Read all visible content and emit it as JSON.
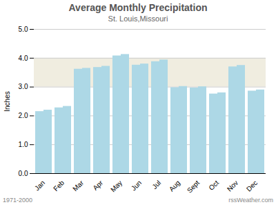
{
  "chart_data": {
    "type": "bar",
    "title": "Average Monthly Precipitation",
    "subtitle": "St. Louis,Missouri",
    "ylabel": "Inches",
    "categories": [
      "Jan",
      "Feb",
      "Mar",
      "Apr",
      "May",
      "Jun",
      "Jul",
      "Aug",
      "Sept",
      "Oct",
      "Nov",
      "Dec"
    ],
    "series": [
      {
        "color": "#ADD8E6",
        "values": [
          2.15,
          2.28,
          3.62,
          3.68,
          4.08,
          3.76,
          3.88,
          2.98,
          2.97,
          2.76,
          3.7,
          2.86
        ]
      },
      {
        "color": "#ADD8E6",
        "values": [
          2.2,
          2.33,
          3.65,
          3.72,
          4.13,
          3.8,
          3.94,
          3.02,
          3.01,
          2.8,
          3.75,
          2.9
        ]
      }
    ],
    "ylim": [
      0.0,
      5.0
    ],
    "yticks": [
      {
        "value": 0.0,
        "label": "0.0"
      },
      {
        "value": 1.0,
        "label": "1.0"
      },
      {
        "value": 2.0,
        "label": "2.0"
      },
      {
        "value": 3.0,
        "label": "3.0"
      },
      {
        "value": 4.0,
        "label": "4.0"
      },
      {
        "value": 5.0,
        "label": "5.0"
      }
    ],
    "shaded_band": [
      3.0,
      4.0
    ],
    "grid": true,
    "annotations": [
      "1971-2000",
      "rssWeather.com"
    ]
  }
}
